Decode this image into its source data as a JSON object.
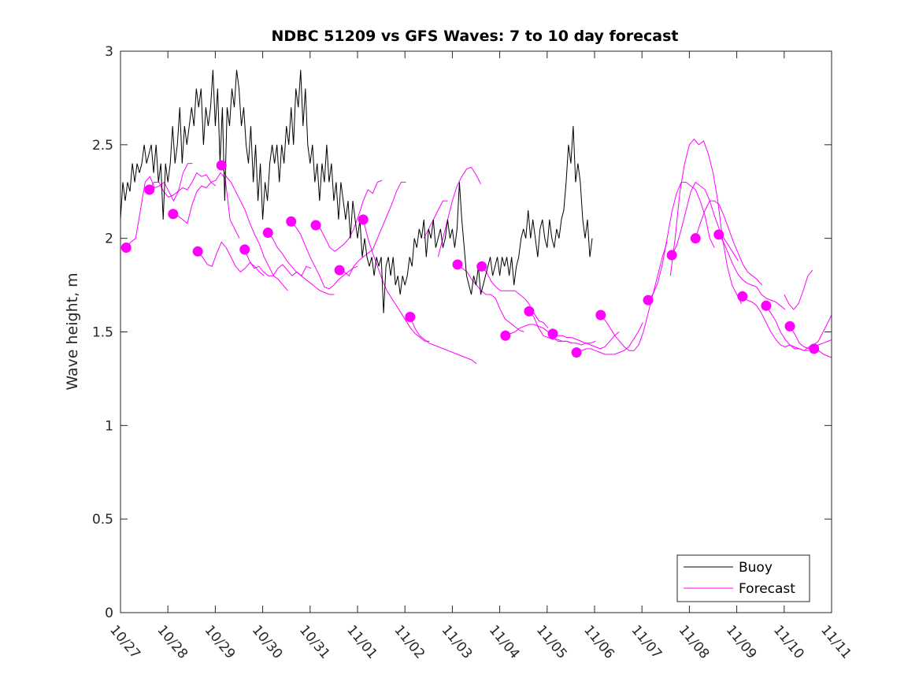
{
  "chart_data": {
    "type": "line",
    "title": "NDBC 51209 vs GFS Waves: 7 to 10 day forecast",
    "xlabel": "",
    "ylabel": "Wave height, m",
    "ylim": [
      0,
      3
    ],
    "xlim_days": [
      0,
      15
    ],
    "x_unit": "days since 10/27",
    "yticks": [
      0,
      0.5,
      1,
      1.5,
      2,
      2.5,
      3
    ],
    "ytick_labels": [
      "0",
      "0.5",
      "1",
      "1.5",
      "2",
      "2.5",
      "3"
    ],
    "xtick_labels": [
      "10/27",
      "10/28",
      "10/29",
      "10/30",
      "10/31",
      "11/01",
      "11/02",
      "11/03",
      "11/04",
      "11/05",
      "11/06",
      "11/07",
      "11/08",
      "11/09",
      "11/10",
      "11/11"
    ],
    "grid": false,
    "legend": {
      "placement": "bottom-right",
      "entries": [
        {
          "label": "Buoy",
          "color": "#000000"
        },
        {
          "label": "Forecast",
          "color": "#ff00ff"
        }
      ]
    },
    "series": [
      {
        "name": "Buoy",
        "color": "#000000",
        "x_start": 0.0,
        "x_step": 0.05,
        "values": [
          2.1,
          2.3,
          2.2,
          2.3,
          2.25,
          2.4,
          2.3,
          2.4,
          2.35,
          2.4,
          2.5,
          2.4,
          2.45,
          2.5,
          2.35,
          2.5,
          2.3,
          2.4,
          2.1,
          2.4,
          2.3,
          2.4,
          2.6,
          2.4,
          2.5,
          2.7,
          2.4,
          2.6,
          2.5,
          2.6,
          2.7,
          2.6,
          2.8,
          2.7,
          2.8,
          2.5,
          2.7,
          2.6,
          2.7,
          2.9,
          2.6,
          2.8,
          2.4,
          2.7,
          2.2,
          2.7,
          2.6,
          2.8,
          2.7,
          2.9,
          2.8,
          2.6,
          2.7,
          2.5,
          2.4,
          2.6,
          2.3,
          2.5,
          2.2,
          2.4,
          2.1,
          2.3,
          2.2,
          2.4,
          2.5,
          2.4,
          2.5,
          2.3,
          2.5,
          2.4,
          2.6,
          2.5,
          2.7,
          2.5,
          2.8,
          2.7,
          2.9,
          2.6,
          2.8,
          2.5,
          2.4,
          2.5,
          2.3,
          2.4,
          2.2,
          2.4,
          2.3,
          2.5,
          2.3,
          2.4,
          2.2,
          2.3,
          2.1,
          2.3,
          2.2,
          2.1,
          2.2,
          2.0,
          2.2,
          2.1,
          2.0,
          2.1,
          1.9,
          2.0,
          1.9,
          1.85,
          1.9,
          1.8,
          1.9,
          1.85,
          1.9,
          1.6,
          1.85,
          1.9,
          1.8,
          1.9,
          1.75,
          1.8,
          1.7,
          1.8,
          1.75,
          1.8,
          1.9,
          1.85,
          2.0,
          1.95,
          2.05,
          2.0,
          2.1,
          1.9,
          2.05,
          2.0,
          2.1,
          1.95,
          2.0,
          2.05,
          1.95,
          2.0,
          2.1,
          2.0,
          2.05,
          1.95,
          2.05,
          2.3,
          2.1,
          1.95,
          1.8,
          1.75,
          1.7,
          1.8,
          1.75,
          1.85,
          1.7,
          1.75,
          1.8,
          1.85,
          1.9,
          1.8,
          1.85,
          1.9,
          1.8,
          1.9,
          1.85,
          1.9,
          1.8,
          1.9,
          1.75,
          1.85,
          1.9,
          2.0,
          2.05,
          2.0,
          2.15,
          2.0,
          2.1,
          2.0,
          1.9,
          2.05,
          2.1,
          2.0,
          1.95,
          2.1,
          2.0,
          1.95,
          2.05,
          2.0,
          2.1,
          2.15,
          2.3,
          2.5,
          2.4,
          2.6,
          2.3,
          2.4,
          2.3,
          2.1,
          2.0,
          2.1,
          1.9,
          2.0
        ]
      }
    ],
    "forecasts": [
      {
        "start": 0.12,
        "values": [
          1.95,
          1.98,
          2.0,
          2.15,
          2.3,
          2.33,
          2.27,
          2.28,
          2.3,
          2.25,
          2.2,
          2.25,
          2.35,
          2.4,
          2.4
        ]
      },
      {
        "start": 0.61,
        "values": [
          2.26,
          2.3,
          2.3,
          2.25,
          2.22,
          2.23,
          2.25,
          2.27,
          2.26,
          2.3,
          2.35,
          2.33,
          2.34,
          2.3,
          2.28
        ]
      },
      {
        "start": 1.11,
        "values": [
          2.13,
          2.12,
          2.1,
          2.08,
          2.18,
          2.25,
          2.28,
          2.27,
          2.3,
          2.31,
          2.35,
          2.32,
          2.1,
          2.05,
          2.0
        ]
      },
      {
        "start": 1.63,
        "values": [
          1.93,
          1.9,
          1.86,
          1.85,
          1.92,
          1.98,
          1.95,
          1.9,
          1.85,
          1.82,
          1.84,
          1.87,
          1.85,
          1.82,
          1.8
        ]
      },
      {
        "start": 2.13,
        "values": [
          2.39,
          2.33,
          2.3,
          2.25,
          2.2,
          2.15,
          2.08,
          2.02,
          1.97,
          1.9,
          1.85,
          1.8,
          1.78,
          1.75,
          1.72
        ]
      },
      {
        "start": 2.62,
        "values": [
          1.94,
          1.88,
          1.84,
          1.85,
          1.82,
          1.8,
          1.8,
          1.84,
          1.86,
          1.83,
          1.8,
          1.82,
          1.8,
          1.85,
          1.84
        ]
      },
      {
        "start": 3.11,
        "values": [
          2.03,
          2.0,
          1.95,
          1.92,
          1.88,
          1.85,
          1.82,
          1.8,
          1.78,
          1.76,
          1.74,
          1.72,
          1.71,
          1.7,
          1.7
        ]
      },
      {
        "start": 3.6,
        "values": [
          2.09,
          2.06,
          2.02,
          1.96,
          1.9,
          1.85,
          1.8,
          1.74,
          1.73,
          1.75,
          1.78,
          1.8,
          1.82,
          1.84,
          1.85
        ]
      },
      {
        "start": 4.12,
        "values": [
          2.07,
          2.05,
          2.0,
          1.95,
          1.93,
          1.95,
          1.97,
          2.0,
          2.05,
          2.12,
          2.2,
          2.26,
          2.24,
          2.3,
          2.31
        ]
      },
      {
        "start": 4.62,
        "values": [
          1.83,
          1.82,
          1.8,
          1.85,
          1.88,
          1.9,
          1.92,
          1.94,
          2.0,
          2.06,
          2.12,
          2.18,
          2.25,
          2.3,
          2.3
        ]
      },
      {
        "start": 5.12,
        "values": [
          2.1,
          2.0,
          1.92,
          1.85,
          1.78,
          1.72,
          1.68,
          1.64,
          1.6,
          1.56,
          1.52,
          1.49,
          1.47,
          1.45,
          1.45
        ]
      },
      {
        "start": 6.11,
        "values": [
          1.58,
          1.52,
          1.48,
          1.46,
          1.44,
          1.43,
          1.42,
          1.41,
          1.4,
          1.39,
          1.38,
          1.37,
          1.36,
          1.35,
          1.33
        ]
      },
      {
        "start": 7.11,
        "values": [
          1.86,
          1.84,
          1.82,
          1.78,
          1.75,
          1.72,
          1.7,
          1.7,
          1.68,
          1.62,
          1.57,
          1.55,
          1.53,
          1.51,
          1.5
        ]
      },
      {
        "start": 7.62,
        "values": [
          1.85,
          1.82,
          1.77,
          1.74,
          1.72,
          1.72,
          1.72,
          1.72,
          1.7,
          1.68,
          1.65,
          1.6,
          1.56,
          1.55,
          1.52
        ]
      },
      {
        "start": 8.12,
        "values": [
          1.48,
          1.49,
          1.5,
          1.52,
          1.53,
          1.54,
          1.54,
          1.53,
          1.52,
          1.5,
          1.48,
          1.45,
          1.45,
          1.45,
          1.44
        ]
      },
      {
        "start": 8.62,
        "values": [
          1.61,
          1.58,
          1.52,
          1.48,
          1.47,
          1.46,
          1.46,
          1.45,
          1.45,
          1.44,
          1.44,
          1.43,
          1.44,
          1.44,
          1.45
        ]
      },
      {
        "start": 9.12,
        "values": [
          1.49,
          1.48,
          1.48,
          1.47,
          1.47,
          1.46,
          1.45,
          1.44,
          1.43,
          1.42,
          1.41,
          1.42,
          1.45,
          1.48,
          1.5
        ]
      },
      {
        "start": 9.62,
        "values": [
          1.39,
          1.4,
          1.41,
          1.41,
          1.4,
          1.39,
          1.38,
          1.38,
          1.38,
          1.39,
          1.4,
          1.42,
          1.46,
          1.5,
          1.55
        ]
      },
      {
        "start": 10.13,
        "values": [
          1.59,
          1.56,
          1.52,
          1.48,
          1.45,
          1.42,
          1.4,
          1.4,
          1.43,
          1.5,
          1.6,
          1.7,
          1.8,
          1.9,
          1.98
        ]
      },
      {
        "start": 11.13,
        "values": [
          1.67,
          1.7,
          1.76,
          1.86,
          2.0,
          2.14,
          2.24,
          2.3,
          2.3,
          2.28,
          2.26,
          2.2,
          2.12,
          2.0,
          1.95
        ]
      },
      {
        "start": 11.63,
        "values": [
          1.91,
          1.96,
          2.05,
          2.15,
          2.25,
          2.3,
          2.28,
          2.26,
          2.2,
          2.12,
          2.05,
          2.0,
          1.96,
          1.92,
          1.88
        ]
      },
      {
        "start": 12.13,
        "values": [
          2.0,
          2.08,
          2.15,
          2.2,
          2.2,
          2.18,
          2.12,
          2.05,
          1.98,
          1.92,
          1.86,
          1.82,
          1.8,
          1.78,
          1.75
        ]
      },
      {
        "start": 12.62,
        "values": [
          2.02,
          1.98,
          1.92,
          1.86,
          1.81,
          1.78,
          1.76,
          1.75,
          1.74,
          1.7,
          1.68,
          1.67,
          1.66,
          1.64,
          1.62
        ]
      },
      {
        "start": 13.12,
        "values": [
          1.69,
          1.67,
          1.66,
          1.64,
          1.6,
          1.55,
          1.5,
          1.46,
          1.43,
          1.42,
          1.43,
          1.42,
          1.41,
          1.4,
          1.4
        ]
      },
      {
        "start": 13.62,
        "values": [
          1.64,
          1.6,
          1.56,
          1.5,
          1.46,
          1.43,
          1.41,
          1.41,
          1.4,
          1.42,
          1.43,
          1.45,
          1.5,
          1.55,
          1.6
        ]
      },
      {
        "start": 14.12,
        "values": [
          1.53,
          1.49,
          1.44,
          1.42,
          1.41,
          1.42,
          1.43,
          1.44,
          1.45,
          1.46
        ]
      },
      {
        "start": 14.63,
        "values": [
          1.41,
          1.4,
          1.38,
          1.37,
          1.36
        ]
      }
    ],
    "extra_forecast_curves": [
      {
        "start": 6.7,
        "values": [
          1.9,
          2.0,
          2.1,
          2.2,
          2.28,
          2.33,
          2.37,
          2.38,
          2.34,
          2.29
        ]
      },
      {
        "start": 6.4,
        "values": [
          2.0,
          2.05,
          2.1,
          2.15,
          2.2,
          2.2
        ]
      },
      {
        "start": 11.6,
        "values": [
          1.8,
          2.0,
          2.25,
          2.4,
          2.5,
          2.53,
          2.5,
          2.52,
          2.45,
          2.35,
          2.2,
          2.0,
          1.85,
          1.75,
          1.7,
          1.65
        ]
      },
      {
        "start": 14.0,
        "values": [
          1.7,
          1.65,
          1.62,
          1.65,
          1.72,
          1.8,
          1.83
        ]
      }
    ]
  }
}
